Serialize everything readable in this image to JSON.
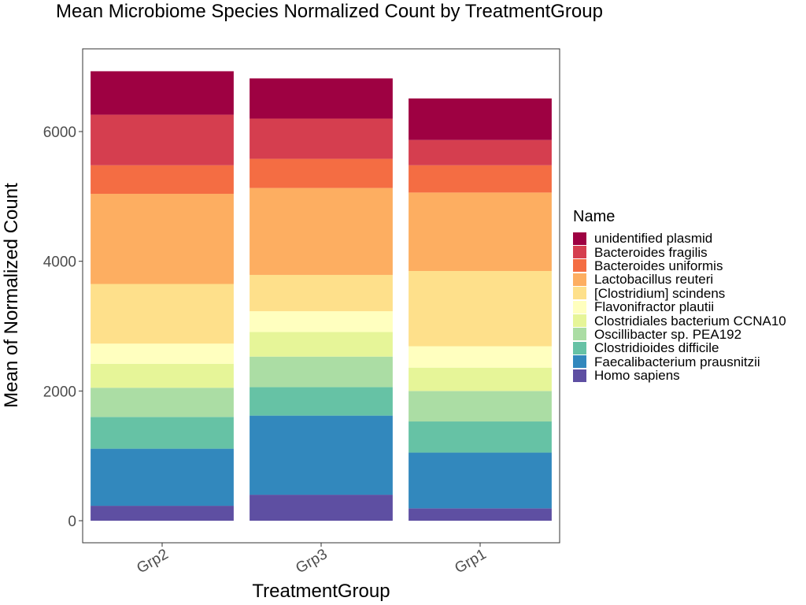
{
  "chart_data": {
    "type": "bar",
    "stacked": true,
    "title": "Mean Microbiome Species Normalized Count by TreatmentGroup",
    "xlabel": "TreatmentGroup",
    "ylabel": "Mean of Normalized Count",
    "categories": [
      "Grp2",
      "Grp3",
      "Grp1"
    ],
    "ylim": [
      -350,
      7050
    ],
    "yticks": [
      0,
      2000,
      4000,
      6000
    ],
    "ytick_labels": [
      "0",
      "2000",
      "4000",
      "6000"
    ],
    "grid": false,
    "legend": {
      "title": "Name",
      "position": "right"
    },
    "series": [
      {
        "name": "Homo sapiens",
        "color": "#5e4fa2",
        "values": [
          230,
          400,
          190
        ]
      },
      {
        "name": "Faecalibacterium prausnitzii",
        "color": "#3288bd",
        "values": [
          880,
          1220,
          860
        ]
      },
      {
        "name": "Clostridioides difficile",
        "color": "#66c2a5",
        "values": [
          490,
          440,
          480
        ]
      },
      {
        "name": "Oscillibacter sp. PEA192",
        "color": "#abdda4",
        "values": [
          450,
          470,
          470
        ]
      },
      {
        "name": "Clostridiales bacterium CCNA10",
        "color": "#e6f598",
        "values": [
          370,
          380,
          360
        ]
      },
      {
        "name": "Flavonifractor plautii",
        "color": "#ffffbf",
        "values": [
          310,
          320,
          330
        ]
      },
      {
        "name": "[Clostridium] scindens",
        "color": "#fee08b",
        "values": [
          920,
          560,
          1160
        ]
      },
      {
        "name": "Lactobacillus reuteri",
        "color": "#fdae61",
        "values": [
          1390,
          1340,
          1210
        ]
      },
      {
        "name": "Bacteroides uniformis",
        "color": "#f46d43",
        "values": [
          440,
          450,
          420
        ]
      },
      {
        "name": "Bacteroides fragilis",
        "color": "#d53e4f",
        "values": [
          780,
          620,
          390
        ]
      },
      {
        "name": "unidentified plasmid",
        "color": "#9e0142",
        "values": [
          670,
          620,
          640
        ]
      }
    ]
  }
}
